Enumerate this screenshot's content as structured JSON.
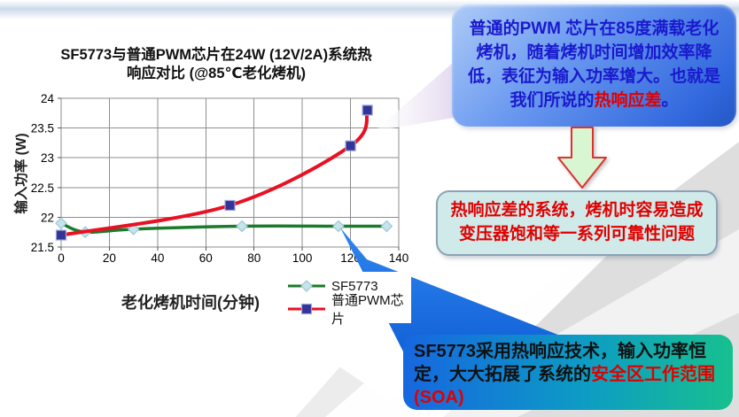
{
  "chart_data": {
    "type": "line",
    "title": "SF5773与普通PWM芯片在24W (12V/2A)系统热响应对比 (@85℃老化烤机)",
    "title_lines": [
      "SF5773与普通PWM芯片在24W (12V/2A)系统热",
      "响应对比 (@85℃老化烤机)"
    ],
    "xlabel": "老化烤机时间(分钟)",
    "ylabel": "输入功率 (W)",
    "xlim": [
      0,
      140
    ],
    "ylim": [
      21.5,
      24
    ],
    "x_ticks": [
      0,
      20,
      40,
      60,
      80,
      100,
      120,
      140
    ],
    "y_ticks": [
      21.5,
      22,
      22.5,
      23,
      23.5,
      24
    ],
    "grid": true,
    "legend_position": "below-right",
    "series": [
      {
        "name": "SF5773",
        "color": "#1b7a2b",
        "line_width": 3.5,
        "marker": "diamond",
        "marker_fill": "#c5e4ec",
        "marker_stroke": "#9fc6d4",
        "points": [
          {
            "x": 0,
            "y": 21.9
          },
          {
            "x": 10,
            "y": 21.75
          },
          {
            "x": 30,
            "y": 21.8
          },
          {
            "x": 75,
            "y": 21.85
          },
          {
            "x": 115,
            "y": 21.85
          },
          {
            "x": 135,
            "y": 21.85
          }
        ]
      },
      {
        "name": "普通PWM芯片",
        "color": "#e81123",
        "line_width": 4,
        "marker": "square",
        "marker_fill": "#333399",
        "marker_stroke": "#9aa8d8",
        "points": [
          {
            "x": 0,
            "y": 21.7
          },
          {
            "x": 70,
            "y": 22.2
          },
          {
            "x": 120,
            "y": 23.2
          },
          {
            "x": 127,
            "y": 23.8
          }
        ]
      }
    ]
  },
  "callouts": {
    "top_box": {
      "segments": [
        {
          "text": "普通的PWM 芯片在85度满载老化烤机，随着烤机时间增加效率降低，表征为输入功率增大。也就是我们所说的",
          "color": "#1a1acd"
        },
        {
          "text": "热响应差",
          "color": "#e00000"
        },
        {
          "text": "。",
          "color": "#1a1acd"
        }
      ]
    },
    "middle_box": {
      "text": "热响应差的系统，烤机时容易造成变压器饱和等一系列可靠性问题",
      "color": "#e00000"
    },
    "bottom_box": {
      "segments": [
        {
          "text": "SF5773采用热响应技术，输入功率恒定，大大拓展了系统的",
          "color": "#111111"
        },
        {
          "text": "安全区工作范围(SOA)",
          "color": "#e00000"
        }
      ]
    }
  },
  "colors": {
    "grid": "#8e8e8e",
    "axis_text": "#000000",
    "top_box_gradient": [
      "#aecbf7",
      "#2456c4"
    ],
    "mid_box_fill": "#d0eaea",
    "mid_box_border": "#8ca3b5",
    "bottom_box_gradient": [
      "#1667e0",
      "#17c08f"
    ],
    "arrow_fill": "#d9f6d2",
    "arrow_border": "#e03030",
    "blue_connector": "#1a6fe0",
    "lavender_connector": "#e4daf0"
  }
}
